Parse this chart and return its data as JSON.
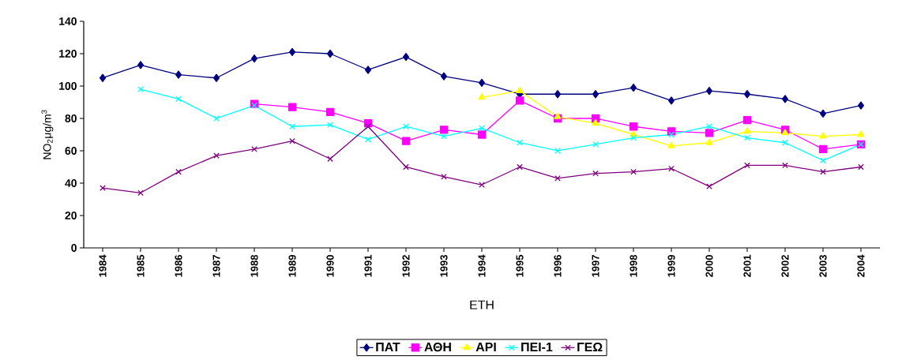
{
  "chart_data": {
    "type": "line",
    "xlabel": "ΕΤΗ",
    "ylabel": "NO$_{2}$μg/m$^{3}$",
    "categories": [
      "1984",
      "1985",
      "1986",
      "1987",
      "1988",
      "1989",
      "1990",
      "1991",
      "1992",
      "1993",
      "1994",
      "1995",
      "1996",
      "1997",
      "1998",
      "1999",
      "2000",
      "2001",
      "2002",
      "2003",
      "2004"
    ],
    "ylim": [
      0,
      140
    ],
    "yticks": [
      0,
      20,
      40,
      60,
      80,
      100,
      120,
      140
    ],
    "legend": "bottom",
    "grid": false,
    "line_style": "solid",
    "series": [
      {
        "name": "ΠΑΤ",
        "color": "#000080",
        "marker": "diamond",
        "values": [
          105,
          113,
          107,
          105,
          117,
          121,
          120,
          110,
          118,
          106,
          102,
          95,
          95,
          95,
          99,
          91,
          97,
          95,
          92,
          83,
          88
        ]
      },
      {
        "name": "ΑΘΗ",
        "color": "#ff00ff",
        "marker": "square",
        "values": [
          null,
          null,
          null,
          null,
          89,
          87,
          84,
          77,
          66,
          73,
          70,
          91,
          80,
          80,
          75,
          72,
          71,
          79,
          73,
          61,
          64
        ]
      },
      {
        "name": "ΑΡΙ",
        "color": "#ffff00",
        "marker": "triangle",
        "values": [
          null,
          null,
          null,
          null,
          null,
          null,
          null,
          null,
          null,
          null,
          93,
          97,
          81,
          77,
          70,
          63,
          65,
          72,
          71,
          69,
          70
        ]
      },
      {
        "name": "ΠΕΙ-1",
        "color": "#00ffff",
        "marker": "cross",
        "values": [
          null,
          98,
          92,
          80,
          88,
          75,
          76,
          67,
          75,
          69,
          74,
          65,
          60,
          64,
          68,
          70,
          75,
          68,
          65,
          54,
          64
        ]
      },
      {
        "name": "ΓΕΩ",
        "color": "#800080",
        "marker": "cross",
        "values": [
          37,
          34,
          47,
          57,
          61,
          66,
          55,
          75,
          50,
          44,
          39,
          50,
          43,
          46,
          47,
          49,
          38,
          51,
          51,
          47,
          50
        ]
      }
    ]
  }
}
